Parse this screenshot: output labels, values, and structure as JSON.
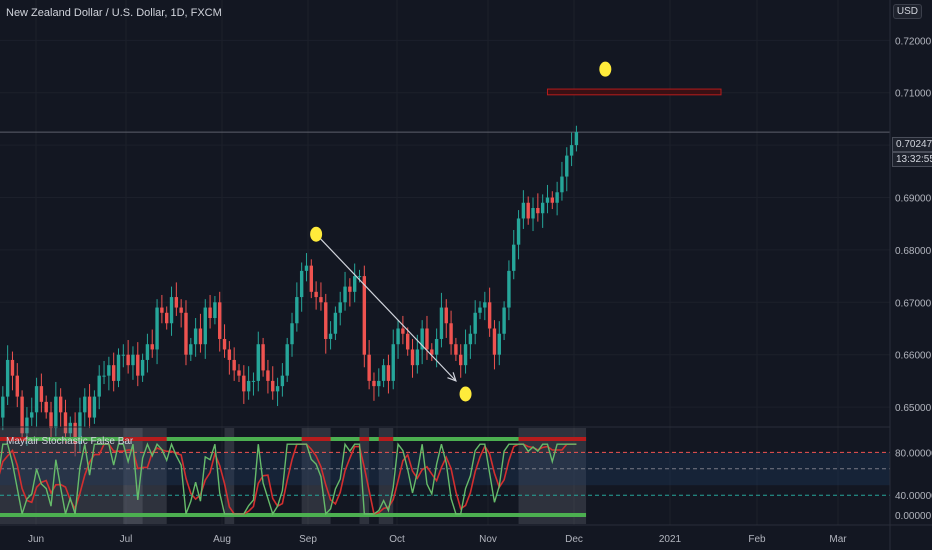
{
  "header": {
    "symbol_title": "New Zealand Dollar / U.S. Dollar, 1D, FXCM",
    "currency": "USD"
  },
  "last_price_label": "0.70247",
  "countdown_label": "13:32:55",
  "indicator": {
    "title": "Mayfair Stochastic False Bar",
    "level_labels": [
      "80.00000",
      "40.00000",
      "0.00000"
    ]
  },
  "colors": {
    "background": "#131722",
    "up": "#26a69a",
    "down": "#ef5350",
    "annotation_dot": "#ffeb3b",
    "resistance": "#b71c1c"
  },
  "chart_data": {
    "type": "candlestick",
    "price_axis": {
      "ticks": [
        "0.72000",
        "0.71000",
        "0.70000",
        "0.69000",
        "0.68000",
        "0.67000",
        "0.66000",
        "0.65000"
      ],
      "ylim": [
        0.6462,
        0.7235
      ]
    },
    "time_axis": {
      "labels": [
        "Jun",
        "Jul",
        "Aug",
        "Sep",
        "Oct",
        "Nov",
        "Dec",
        "2021",
        "Feb",
        "Mar"
      ]
    },
    "last_price": 0.70247,
    "closes": [
      0.648,
      0.652,
      0.659,
      0.656,
      0.652,
      0.645,
      0.648,
      0.649,
      0.654,
      0.651,
      0.649,
      0.646,
      0.652,
      0.649,
      0.645,
      0.647,
      0.643,
      0.649,
      0.652,
      0.648,
      0.652,
      0.656,
      0.656,
      0.658,
      0.655,
      0.66,
      0.66,
      0.658,
      0.66,
      0.656,
      0.659,
      0.662,
      0.661,
      0.669,
      0.668,
      0.666,
      0.671,
      0.669,
      0.668,
      0.66,
      0.662,
      0.665,
      0.662,
      0.669,
      0.667,
      0.67,
      0.663,
      0.661,
      0.659,
      0.657,
      0.656,
      0.653,
      0.655,
      0.655,
      0.662,
      0.657,
      0.655,
      0.653,
      0.654,
      0.656,
      0.662,
      0.666,
      0.671,
      0.676,
      0.677,
      0.672,
      0.671,
      0.67,
      0.663,
      0.664,
      0.668,
      0.67,
      0.673,
      0.672,
      0.675,
      0.675,
      0.66,
      0.655,
      0.654,
      0.655,
      0.658,
      0.655,
      0.662,
      0.665,
      0.664,
      0.661,
      0.658,
      0.661,
      0.665,
      0.661,
      0.66,
      0.663,
      0.669,
      0.666,
      0.662,
      0.66,
      0.658,
      0.662,
      0.664,
      0.668,
      0.669,
      0.67,
      0.665,
      0.66,
      0.664,
      0.669,
      0.676,
      0.681,
      0.686,
      0.689,
      0.686,
      0.688,
      0.687,
      0.689,
      0.69,
      0.689,
      0.691,
      0.694,
      0.698,
      0.7,
      0.7025
    ],
    "annotations": {
      "arrow_from": {
        "date_index": 66,
        "price": 0.683
      },
      "arrow_to": {
        "date_index": 95,
        "price": 0.655
      },
      "dots": [
        {
          "date_index": 66,
          "price": 0.683
        },
        {
          "date_index": 97,
          "price": 0.6525
        },
        {
          "date_index": 126,
          "price": 0.7145
        }
      ],
      "resistance_zone": {
        "from_index": 114,
        "to_index": 150,
        "price_low": 0.7096,
        "price_high": 0.7107
      }
    }
  }
}
